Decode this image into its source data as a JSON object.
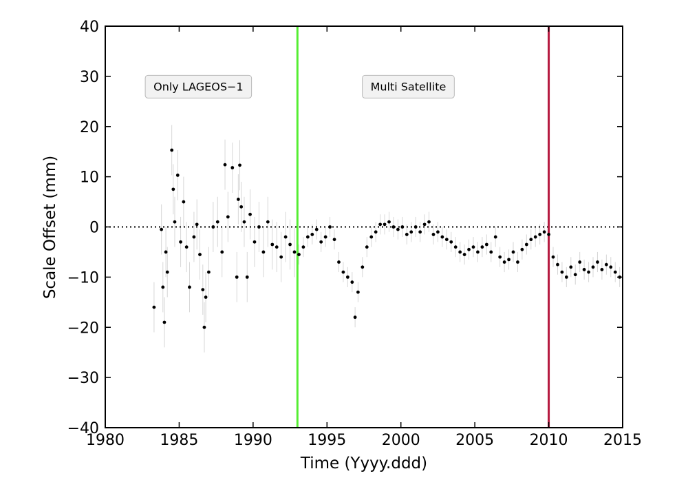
{
  "chart_data": {
    "type": "scatter",
    "title": "",
    "xlabel": "Time (Yyyy.ddd)",
    "ylabel": "Scale Offset (mm)",
    "xlim": [
      1980,
      2015
    ],
    "ylim": [
      -40,
      40
    ],
    "xticks": [
      1980,
      1985,
      1990,
      1995,
      2000,
      2005,
      2010,
      2015
    ],
    "yticks": [
      -40,
      -30,
      -20,
      -10,
      0,
      10,
      20,
      30,
      40
    ],
    "xtick_labels": [
      "1980",
      "1985",
      "1990",
      "1995",
      "2000",
      "2005",
      "2010",
      "2015"
    ],
    "ytick_labels": [
      "−40",
      "−30",
      "−20",
      "−10",
      "0",
      "10",
      "20",
      "30",
      "40"
    ],
    "grid": false,
    "reference_line": {
      "y": 0,
      "style": "dotted",
      "color": "#000000"
    },
    "vertical_lines": [
      {
        "x": 1993.0,
        "color": "#55ee33"
      },
      {
        "x": 2010.0,
        "color": "#b5173d"
      }
    ],
    "annotations": [
      {
        "text": "Only LAGEOS−1",
        "x": 1986.3,
        "y": 27.8
      },
      {
        "text": "Multi Satellite",
        "x": 2000.5,
        "y": 27.8
      }
    ],
    "colors": {
      "points": "#000000",
      "errorbars": "#d6d6d6"
    },
    "series": [
      {
        "x": [
          1983.3,
          1983.8,
          1983.9,
          1984.0,
          1984.1,
          1984.2,
          1984.5,
          1984.6,
          1984.7,
          1984.9,
          1985.1,
          1985.3,
          1985.5,
          1985.7,
          1986.0,
          1986.2,
          1986.4,
          1986.6,
          1986.7,
          1986.8,
          1987.0,
          1987.3,
          1987.6,
          1987.9,
          1988.1,
          1988.3,
          1988.6,
          1988.9,
          1989.0,
          1989.1,
          1989.2,
          1989.4,
          1989.6,
          1989.8,
          1990.1,
          1990.4,
          1990.7,
          1991.0,
          1991.3,
          1991.6,
          1991.9,
          1992.2,
          1992.5,
          1992.8,
          1993.1,
          1993.4,
          1993.7,
          1994.0,
          1994.3,
          1994.6,
          1994.9,
          1995.2,
          1995.5,
          1995.8,
          1996.1,
          1996.4,
          1996.7,
          1996.9,
          1997.1,
          1997.4,
          1997.7,
          1998.0,
          1998.3,
          1998.6,
          1998.9,
          1999.2,
          1999.5,
          1999.8,
          2000.1,
          2000.4,
          2000.7,
          2001.0,
          2001.3,
          2001.6,
          2001.9,
          2002.2,
          2002.5,
          2002.8,
          2003.1,
          2003.4,
          2003.7,
          2004.0,
          2004.3,
          2004.6,
          2004.9,
          2005.2,
          2005.5,
          2005.8,
          2006.1,
          2006.4,
          2006.7,
          2007.0,
          2007.3,
          2007.6,
          2007.9,
          2008.2,
          2008.5,
          2008.8,
          2009.1,
          2009.4,
          2009.7,
          2010.0,
          2010.3,
          2010.6,
          2010.9,
          2011.2,
          2011.5,
          2011.8,
          2012.1,
          2012.4,
          2012.7,
          2013.0,
          2013.3,
          2013.6,
          2013.9,
          2014.2,
          2014.5,
          2014.8
        ],
        "y": [
          -16.0,
          -0.5,
          -12.0,
          -19.0,
          -5.0,
          -9.0,
          15.3,
          7.5,
          1.0,
          10.3,
          -3.0,
          5.0,
          -4.0,
          -12.0,
          -2.0,
          0.5,
          -5.5,
          -12.5,
          -20.0,
          -14.0,
          -9.0,
          0.0,
          1.0,
          -5.0,
          12.4,
          2.0,
          11.8,
          -10.0,
          5.5,
          12.3,
          4.0,
          1.0,
          -10.0,
          2.5,
          -3.0,
          0.0,
          -5.0,
          1.0,
          -3.5,
          -4.0,
          -6.0,
          -2.0,
          -3.5,
          -5.0,
          -5.5,
          -4.0,
          -2.0,
          -1.5,
          -0.5,
          -3.0,
          -2.0,
          0.0,
          -2.5,
          -7.0,
          -9.0,
          -10.0,
          -11.0,
          -18.0,
          -13.0,
          -8.0,
          -4.0,
          -2.0,
          -1.0,
          0.5,
          0.5,
          1.0,
          0.0,
          -0.5,
          0.0,
          -1.5,
          -1.0,
          0.0,
          -1.0,
          0.5,
          1.0,
          -1.5,
          -1.0,
          -2.0,
          -2.5,
          -3.0,
          -4.0,
          -5.0,
          -5.5,
          -4.5,
          -4.0,
          -5.0,
          -4.0,
          -3.5,
          -5.0,
          -2.0,
          -6.0,
          -7.0,
          -6.5,
          -5.0,
          -7.0,
          -4.5,
          -3.5,
          -2.5,
          -2.0,
          -1.5,
          -1.0,
          -1.5,
          -6.0,
          -7.5,
          -9.0,
          -10.0,
          -8.0,
          -9.5,
          -7.0,
          -8.5,
          -9.0,
          -8.0,
          -7.0,
          -8.5,
          -7.5,
          -8.0,
          -9.0,
          -10.0
        ]
      }
    ]
  }
}
